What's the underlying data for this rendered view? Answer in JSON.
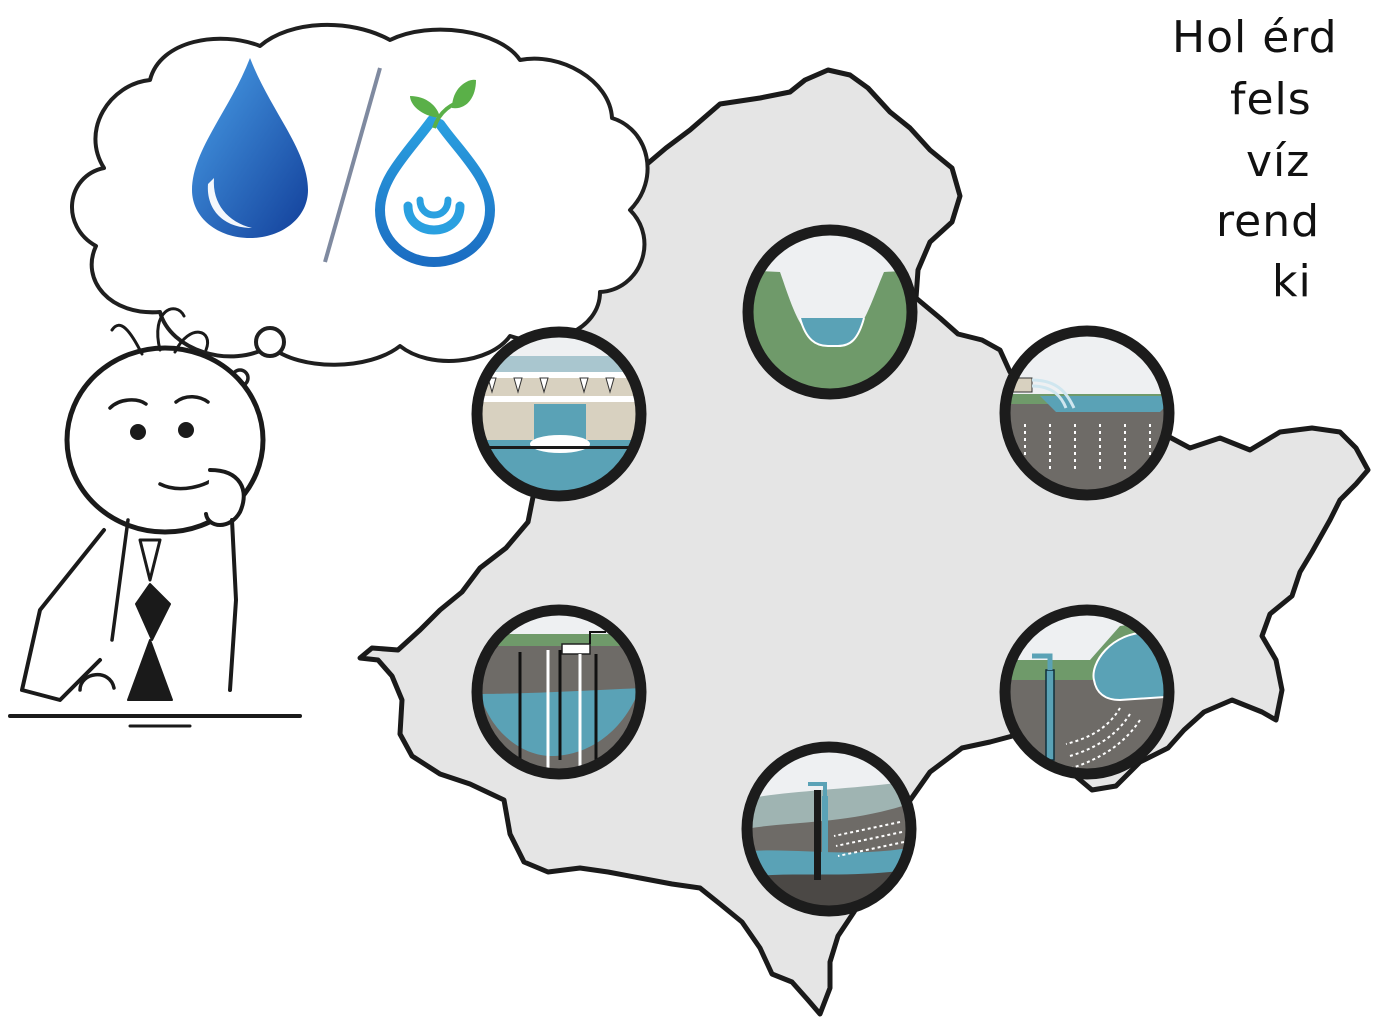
{
  "caption": {
    "lines": [
      "Hol érd",
      "fels",
      "víz",
      "rend",
      "ki"
    ]
  },
  "colors": {
    "region_fill": "#e5e5e5",
    "region_outline": "#1a1a1a",
    "vignette_border": "#1c1c1c",
    "ground_green": "#6f9a6a",
    "water_blue": "#5aa2b6",
    "soil_gray": "#6e6b67",
    "sky_light": "#eef0f2",
    "drop_blue": "#1f66b8",
    "leaf_green": "#5ab048",
    "divider": "#7f8aa0"
  },
  "icons": [
    "thinking-man-illustration",
    "thought-bubble",
    "water-drop-icon",
    "eco-water-drop-icon",
    "river-channel-icon",
    "infiltration-basin-icon",
    "bank-filtration-well-icon",
    "groundwater-well-icon",
    "monitoring-well-icon",
    "weir-dam-icon"
  ]
}
